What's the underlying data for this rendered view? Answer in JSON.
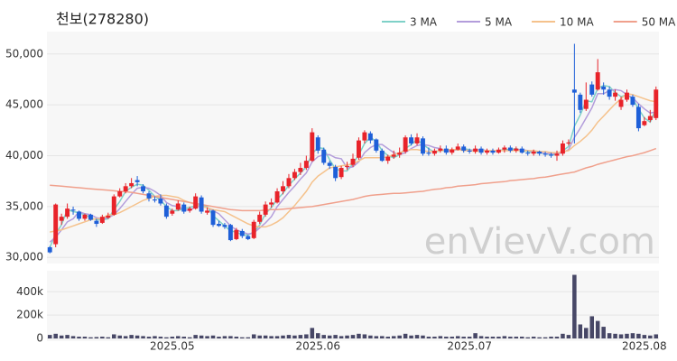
{
  "chart_data": {
    "type": "candlestick",
    "title": "천보(278280)",
    "watermark": "enVievV.com",
    "up_color": "#e8232a",
    "down_color": "#1e5fd8",
    "grid": true,
    "categories": [
      null,
      null,
      null,
      null,
      null,
      null,
      null,
      null,
      null,
      null,
      null,
      null,
      null,
      null,
      null,
      null,
      null,
      null,
      null,
      null,
      null,
      "2025.05",
      null,
      null,
      null,
      null,
      null,
      null,
      null,
      null,
      null,
      null,
      null,
      null,
      null,
      null,
      null,
      null,
      null,
      null,
      null,
      null,
      null,
      null,
      null,
      null,
      "2025.06",
      null,
      null,
      null,
      null,
      null,
      null,
      null,
      null,
      null,
      null,
      null,
      null,
      null,
      null,
      null,
      null,
      null,
      null,
      null,
      null,
      null,
      null,
      null,
      null,
      null,
      "2025.07",
      null,
      null,
      null,
      null,
      null,
      null,
      null,
      null,
      null,
      null,
      null,
      null,
      null,
      null,
      null,
      null,
      null,
      null,
      null,
      null,
      null,
      null,
      null,
      null,
      null,
      null,
      null,
      null,
      null,
      "2025.08",
      null,
      null
    ],
    "open": [
      31000,
      31300,
      33600,
      34000,
      34700,
      34500,
      33800,
      34200,
      33600,
      33400,
      33900,
      34200,
      36000,
      36500,
      37000,
      37600,
      37000,
      36300,
      35700,
      35800,
      35100,
      34300,
      34700,
      35200,
      34600,
      34800,
      35900,
      34400,
      34600,
      33300,
      33200,
      33200,
      31800,
      32600,
      32100,
      31900,
      33500,
      34200,
      35200,
      35400,
      36500,
      37000,
      37800,
      38400,
      38800,
      39500,
      41800,
      40600,
      39300,
      38900,
      37900,
      38900,
      39100,
      39800,
      41500,
      42200,
      41600,
      40500,
      39500,
      39900,
      40100,
      40400,
      41800,
      41200,
      41700,
      40300,
      40200,
      40500,
      40700,
      40300,
      40600,
      40900,
      40500,
      40400,
      40700,
      40300,
      40500,
      40300,
      40600,
      40800,
      40500,
      40700,
      40300,
      40200,
      40400,
      40200,
      40100,
      40000,
      40200,
      41200,
      46500,
      46000,
      44600,
      47000,
      46500,
      46800,
      46500,
      45800,
      44800,
      45500,
      45800,
      44800,
      43000,
      43500,
      43700
    ],
    "high": [
      31100,
      35300,
      34300,
      35300,
      35000,
      34600,
      34300,
      34300,
      33800,
      34200,
      34400,
      36200,
      36800,
      37300,
      37800,
      38000,
      37200,
      36500,
      36000,
      36200,
      35300,
      34800,
      35600,
      35400,
      35000,
      36300,
      36100,
      34900,
      34700,
      33600,
      33400,
      33300,
      32900,
      32800,
      32200,
      33700,
      34500,
      35500,
      35800,
      36800,
      37500,
      38200,
      38700,
      39300,
      40000,
      42700,
      42000,
      40800,
      39500,
      39100,
      39000,
      39400,
      40200,
      41800,
      42500,
      42400,
      41700,
      40700,
      40100,
      40500,
      40800,
      42000,
      42100,
      42200,
      41900,
      40800,
      40700,
      41000,
      41000,
      40800,
      41200,
      41100,
      40700,
      41000,
      40900,
      40700,
      40700,
      40800,
      41000,
      41000,
      40900,
      40900,
      40500,
      40600,
      40500,
      40400,
      40300,
      40500,
      41500,
      41600,
      51000,
      46200,
      47200,
      47300,
      49500,
      47200,
      46800,
      46500,
      45800,
      46500,
      46000,
      45100,
      43800,
      44500,
      46800
    ],
    "low": [
      30400,
      31000,
      33200,
      33800,
      34200,
      33600,
      33600,
      33600,
      33000,
      33300,
      33800,
      34100,
      35900,
      36300,
      36800,
      37000,
      36300,
      35500,
      35400,
      35100,
      33800,
      34100,
      34600,
      34300,
      34400,
      34700,
      34300,
      34200,
      33000,
      33000,
      32800,
      31600,
      31700,
      31900,
      31700,
      31800,
      33300,
      34000,
      34900,
      35300,
      36200,
      36800,
      37600,
      38100,
      38600,
      39400,
      40200,
      39100,
      38700,
      37500,
      37700,
      38600,
      38900,
      39600,
      41200,
      41200,
      40300,
      39400,
      39200,
      39700,
      39800,
      40200,
      41000,
      41000,
      40000,
      40000,
      40000,
      40300,
      40100,
      40100,
      40500,
      40300,
      40200,
      40200,
      40100,
      40100,
      40100,
      40200,
      40300,
      40300,
      40300,
      40200,
      40000,
      40000,
      40000,
      39900,
      39800,
      39500,
      40000,
      41000,
      41200,
      44200,
      44400,
      45800,
      46400,
      46000,
      45500,
      45400,
      44500,
      45300,
      44800,
      42400,
      42900,
      43300,
      43500
    ],
    "close": [
      30500,
      35200,
      34000,
      34800,
      34600,
      33800,
      34200,
      33700,
      33300,
      34000,
      34100,
      36000,
      36500,
      37000,
      37300,
      37400,
      36500,
      35800,
      35600,
      35300,
      34000,
      34600,
      35300,
      34500,
      34800,
      36000,
      34500,
      34600,
      33200,
      33100,
      33000,
      31700,
      32700,
      32100,
      31800,
      33500,
      34200,
      35200,
      35400,
      36500,
      37000,
      37800,
      38400,
      38800,
      39500,
      42300,
      40500,
      39300,
      39000,
      37800,
      38800,
      39000,
      39700,
      41500,
      42300,
      41500,
      40500,
      39500,
      39900,
      40100,
      40300,
      41800,
      41200,
      41800,
      40200,
      40200,
      40500,
      40700,
      40300,
      40600,
      40900,
      40500,
      40400,
      40700,
      40300,
      40500,
      40300,
      40600,
      40800,
      40500,
      40700,
      40300,
      40200,
      40400,
      40200,
      40100,
      40000,
      40200,
      41200,
      41300,
      46200,
      44500,
      45500,
      46000,
      48200,
      46500,
      45800,
      46200,
      45500,
      46200,
      45000,
      42700,
      43400,
      43900,
      46500
    ],
    "ylim": [
      29400,
      52200
    ],
    "yticks": [
      {
        "value": 30000,
        "label": "30,000"
      },
      {
        "value": 35000,
        "label": "35,000"
      },
      {
        "value": 40000,
        "label": "40,000"
      },
      {
        "value": 45000,
        "label": "45,000"
      },
      {
        "value": 50000,
        "label": "50,000"
      }
    ],
    "series": [
      {
        "name": "3 MA",
        "color": "#7fd1c8",
        "values": [
          31000,
          32300,
          33200,
          34700,
          34500,
          34400,
          34200,
          33900,
          33700,
          33700,
          33800,
          34700,
          35500,
          36500,
          36900,
          37200,
          37100,
          36600,
          36000,
          35600,
          35000,
          34600,
          34600,
          34800,
          34900,
          35100,
          35100,
          35000,
          34100,
          33600,
          33100,
          32600,
          32500,
          32200,
          32200,
          32500,
          33200,
          34300,
          34900,
          35700,
          36300,
          37100,
          37700,
          38300,
          38900,
          40200,
          40800,
          40700,
          39600,
          38700,
          38500,
          38500,
          39200,
          40100,
          41200,
          41800,
          41400,
          40500,
          40000,
          39800,
          40100,
          40700,
          41100,
          41600,
          41100,
          40700,
          40300,
          40500,
          40500,
          40500,
          40600,
          40700,
          40600,
          40500,
          40500,
          40500,
          40400,
          40500,
          40600,
          40600,
          40700,
          40500,
          40400,
          40300,
          40300,
          40200,
          40100,
          40100,
          40500,
          40900,
          42900,
          44000,
          45400,
          45300,
          46600,
          46900,
          46800,
          46200,
          45800,
          46000,
          45600,
          44600,
          43700,
          43300,
          44600
        ]
      },
      {
        "name": "5 MA",
        "color": "#b39ddb",
        "values": [
          31500,
          32000,
          32700,
          33500,
          33800,
          34500,
          34300,
          34200,
          33900,
          33800,
          33900,
          34200,
          34800,
          35500,
          36200,
          36800,
          36900,
          36800,
          36500,
          36100,
          35400,
          35100,
          35000,
          34700,
          34600,
          35000,
          35000,
          34900,
          34600,
          34300,
          33700,
          33100,
          32700,
          32500,
          32300,
          32400,
          32900,
          33400,
          34000,
          35000,
          35700,
          36400,
          37000,
          37700,
          38300,
          39400,
          39900,
          40100,
          40100,
          39800,
          39700,
          38800,
          38900,
          39400,
          40300,
          40800,
          41100,
          41100,
          40700,
          40300,
          40100,
          40300,
          40700,
          41000,
          41100,
          41000,
          40800,
          40700,
          40400,
          40500,
          40600,
          40600,
          40500,
          40600,
          40600,
          40500,
          40400,
          40500,
          40500,
          40500,
          40600,
          40600,
          40500,
          40400,
          40400,
          40200,
          40200,
          40200,
          40300,
          40600,
          41800,
          42700,
          43700,
          44700,
          46100,
          46100,
          46400,
          46500,
          46400,
          46000,
          45700,
          45100,
          44600,
          44200,
          44300
        ]
      },
      {
        "name": "10 MA",
        "color": "#f5c28c",
        "values": [
          32500,
          32600,
          32700,
          32900,
          33100,
          33300,
          33500,
          33700,
          33800,
          33800,
          34200,
          34200,
          34400,
          34700,
          35000,
          35300,
          35600,
          35800,
          36000,
          36100,
          36100,
          36000,
          35900,
          35600,
          35400,
          35200,
          35000,
          34900,
          34700,
          34600,
          34500,
          34200,
          33900,
          33600,
          33300,
          33100,
          33000,
          33000,
          33200,
          33500,
          33900,
          34500,
          35100,
          35800,
          36500,
          37400,
          38000,
          38400,
          38800,
          38900,
          39000,
          39100,
          39200,
          39500,
          39800,
          39800,
          39800,
          39800,
          39900,
          40100,
          40300,
          40500,
          40600,
          40600,
          40500,
          40400,
          40400,
          40500,
          40600,
          40600,
          40600,
          40500,
          40500,
          40400,
          40500,
          40500,
          40500,
          40500,
          40500,
          40500,
          40500,
          40500,
          40500,
          40500,
          40400,
          40400,
          40300,
          40300,
          40400,
          40500,
          41000,
          41400,
          41900,
          42500,
          43300,
          43900,
          44500,
          45100,
          45600,
          46100,
          46000,
          45800,
          45600,
          45400,
          45300
        ]
      },
      {
        "name": "50 MA",
        "color": "#f0a08c",
        "values": [
          37100,
          37050,
          37000,
          36950,
          36900,
          36850,
          36800,
          36750,
          36700,
          36650,
          36600,
          36550,
          36500,
          36450,
          36400,
          36300,
          36200,
          36100,
          36000,
          35900,
          35800,
          35700,
          35600,
          35500,
          35400,
          35300,
          35200,
          35100,
          35000,
          34900,
          34800,
          34700,
          34650,
          34600,
          34600,
          34600,
          34600,
          34650,
          34700,
          34700,
          34750,
          34800,
          34850,
          34900,
          34950,
          35000,
          35100,
          35200,
          35300,
          35400,
          35500,
          35600,
          35700,
          35850,
          36000,
          36100,
          36150,
          36200,
          36250,
          36300,
          36300,
          36350,
          36400,
          36450,
          36500,
          36600,
          36700,
          36750,
          36850,
          36900,
          37000,
          37050,
          37100,
          37150,
          37250,
          37300,
          37350,
          37400,
          37450,
          37550,
          37600,
          37650,
          37700,
          37750,
          37850,
          37900,
          38000,
          38100,
          38200,
          38300,
          38400,
          38600,
          38800,
          38950,
          39150,
          39300,
          39450,
          39600,
          39750,
          39900,
          40000,
          40150,
          40300,
          40500,
          40700
        ]
      }
    ],
    "volume": {
      "color": "#474766",
      "values": [
        30000,
        40000,
        25000,
        30000,
        20000,
        15000,
        15000,
        10000,
        12000,
        15000,
        10000,
        35000,
        25000,
        20000,
        30000,
        25000,
        20000,
        15000,
        20000,
        15000,
        10000,
        15000,
        20000,
        15000,
        10000,
        30000,
        25000,
        20000,
        25000,
        15000,
        20000,
        20000,
        15000,
        10000,
        10000,
        35000,
        25000,
        25000,
        20000,
        20000,
        25000,
        30000,
        25000,
        30000,
        35000,
        90000,
        45000,
        30000,
        25000,
        30000,
        20000,
        25000,
        30000,
        40000,
        35000,
        25000,
        20000,
        20000,
        15000,
        20000,
        25000,
        40000,
        25000,
        30000,
        25000,
        15000,
        15000,
        20000,
        15000,
        15000,
        20000,
        15000,
        15000,
        45000,
        20000,
        15000,
        15000,
        15000,
        20000,
        15000,
        15000,
        15000,
        10000,
        15000,
        10000,
        10000,
        15000,
        15000,
        40000,
        30000,
        545000,
        120000,
        90000,
        190000,
        150000,
        100000,
        45000,
        40000,
        35000,
        40000,
        45000,
        40000,
        30000,
        25000,
        35000
      ],
      "ylim": [
        0,
        580000
      ],
      "yticks": [
        0,
        {
          "value": 200000,
          "label": "200k"
        },
        {
          "value": 400000,
          "label": "400k"
        }
      ]
    }
  }
}
